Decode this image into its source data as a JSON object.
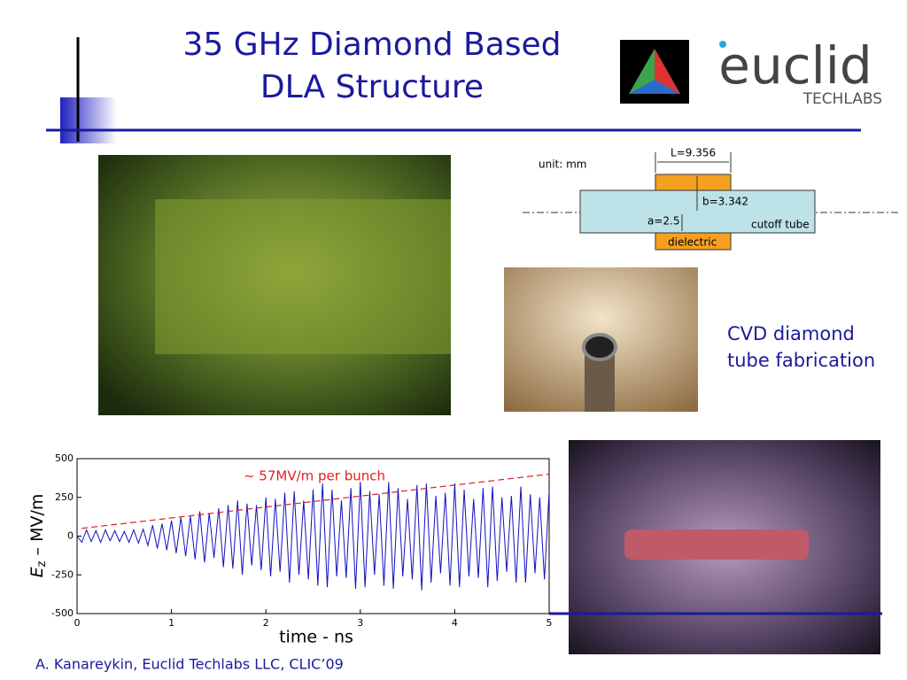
{
  "header": {
    "title": [
      "35 GHz Diamond Based",
      "DLA Structure"
    ]
  },
  "logos": {
    "euclid": "euclid",
    "techlabs": "TECHLABS"
  },
  "diagram": {
    "unit": "unit: mm",
    "length": "L=9.356",
    "outer": "b=3.342",
    "inner": "a=2.5",
    "tube": "cutoff tube",
    "dielectric": "dielectric"
  },
  "caption": [
    "CVD diamond",
    "tube fabrication"
  ],
  "chart_data": {
    "type": "line",
    "annotation": "~ 57MV/m per bunch",
    "xlabel": "time - ns",
    "ylabel": [
      "E",
      "z",
      " – MV/m"
    ],
    "xlim": [
      0,
      5
    ],
    "ylim": [
      -500,
      500
    ],
    "xticks": [
      0,
      1,
      2,
      3,
      4,
      5
    ],
    "yticks": [
      500,
      250,
      0,
      -250,
      -500
    ],
    "x": [
      0,
      0.05,
      0.1,
      0.15,
      0.2,
      0.25,
      0.3,
      0.35,
      0.4,
      0.45,
      0.5,
      0.55,
      0.6,
      0.65,
      0.7,
      0.75,
      0.8,
      0.85,
      0.9,
      0.95,
      1,
      1.05,
      1.1,
      1.15,
      1.2,
      1.25,
      1.3,
      1.35,
      1.4,
      1.45,
      1.5,
      1.55,
      1.6,
      1.65,
      1.7,
      1.75,
      1.8,
      1.85,
      1.9,
      1.95,
      2,
      2.05,
      2.1,
      2.15,
      2.2,
      2.25,
      2.3,
      2.35,
      2.4,
      2.45,
      2.5,
      2.55,
      2.6,
      2.65,
      2.7,
      2.75,
      2.8,
      2.85,
      2.9,
      2.95,
      3,
      3.05,
      3.1,
      3.15,
      3.2,
      3.25,
      3.3,
      3.35,
      3.4,
      3.45,
      3.5,
      3.55,
      3.6,
      3.65,
      3.7,
      3.75,
      3.8,
      3.85,
      3.9,
      3.95,
      4,
      4.05,
      4.1,
      4.15,
      4.2,
      4.25,
      4.3,
      4.35,
      4.4,
      4.45,
      4.5,
      4.55,
      4.6,
      4.65,
      4.7,
      4.75,
      4.8,
      4.85,
      4.9,
      4.95,
      5
    ],
    "series": [
      {
        "color": "#1010c0",
        "values": [
          0,
          -40,
          40,
          -35,
          35,
          -40,
          40,
          -30,
          35,
          -35,
          30,
          -40,
          40,
          -45,
          45,
          -60,
          70,
          -80,
          80,
          -90,
          100,
          -110,
          120,
          -130,
          130,
          -150,
          160,
          -170,
          150,
          -140,
          180,
          -200,
          200,
          -210,
          230,
          -250,
          210,
          -190,
          200,
          -220,
          250,
          -260,
          240,
          -230,
          280,
          -300,
          290,
          -250,
          230,
          -280,
          300,
          -320,
          340,
          -330,
          300,
          -260,
          230,
          -270,
          310,
          -340,
          350,
          -330,
          290,
          -250,
          270,
          -320,
          350,
          -340,
          310,
          -260,
          240,
          -280,
          330,
          -350,
          340,
          -300,
          260,
          -240,
          280,
          -320,
          340,
          -330,
          300,
          -260,
          240,
          -270,
          310,
          -330,
          320,
          -290,
          250,
          -230,
          260,
          -300,
          320,
          -300,
          270,
          -240,
          250,
          -280,
          290
        ]
      },
      {
        "color": "#e02020",
        "dash": true,
        "x": [
          0.05,
          5
        ],
        "values": [
          50,
          400
        ]
      }
    ]
  },
  "footer": "A. Kanareykin, Euclid Techlabs LLC, CLIC’09"
}
